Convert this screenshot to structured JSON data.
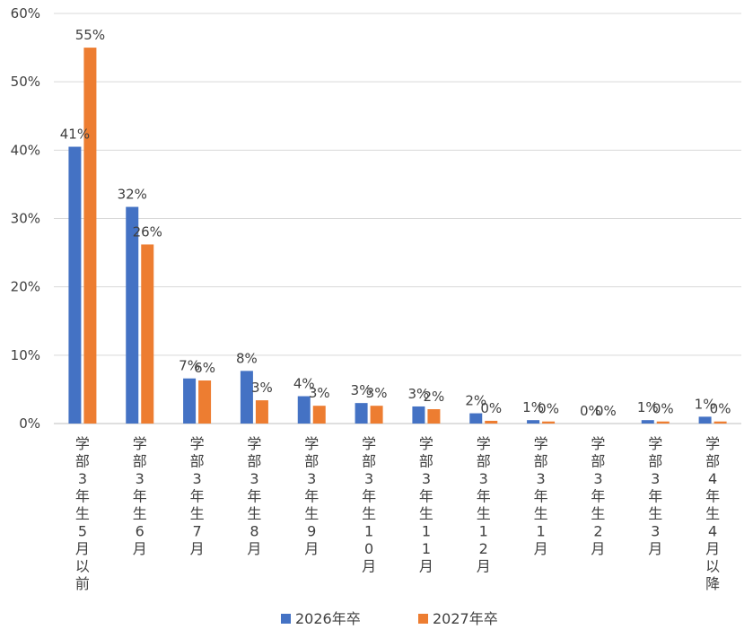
{
  "chart_data": {
    "type": "bar",
    "title": "",
    "xlabel": "",
    "ylabel": "",
    "ylim": [
      0,
      0.6
    ],
    "yticks": [
      "0%",
      "10%",
      "20%",
      "30%",
      "40%",
      "50%",
      "60%"
    ],
    "grid": true,
    "legend": "bottom",
    "categories": [
      "学部3年生5月以前",
      "学部3年生6月",
      "学部3年生7月",
      "学部3年生8月",
      "学部3年生9月",
      "学部3年生10月",
      "学部3年生11月",
      "学部3年生12月",
      "学部3年生1月",
      "学部3年生2月",
      "学部3年生3月",
      "学部4年生4月以降"
    ],
    "series": [
      {
        "name": "2026年卒",
        "color": "#4472C4",
        "values": [
          0.405,
          0.317,
          0.066,
          0.077,
          0.04,
          0.03,
          0.025,
          0.015,
          0.005,
          0.0,
          0.005,
          0.01
        ],
        "labels": [
          "41%",
          "32%",
          "7%",
          "8%",
          "4%",
          "3%",
          "3%",
          "2%",
          "1%",
          "0%",
          "1%",
          "1%"
        ]
      },
      {
        "name": "2027年卒",
        "color": "#ED7D31",
        "values": [
          0.55,
          0.262,
          0.063,
          0.034,
          0.026,
          0.026,
          0.021,
          0.004,
          0.003,
          0.0,
          0.003,
          0.003
        ],
        "labels": [
          "55%",
          "26%",
          "6%",
          "3%",
          "3%",
          "3%",
          "2%",
          "0%",
          "0%",
          "0%",
          "0%",
          "0%"
        ]
      }
    ]
  }
}
